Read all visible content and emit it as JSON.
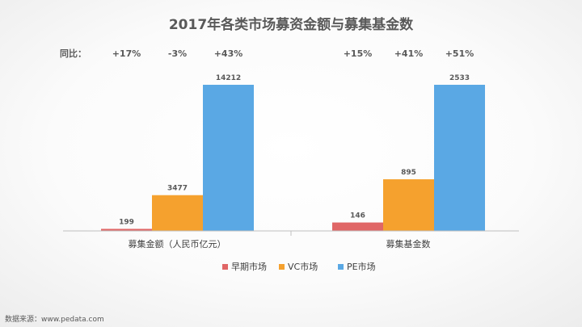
{
  "chart_data": {
    "type": "bar",
    "title": "2017年各类市场募资金额与募集基金数",
    "categories": [
      "募集金额（人民币亿元）",
      "募集基金数"
    ],
    "series": [
      {
        "name": "早期市场",
        "values": [
          199,
          146
        ],
        "color": "#e06666"
      },
      {
        "name": "VC市场",
        "values": [
          3477,
          895
        ],
        "color": "#f5a12e"
      },
      {
        "name": "PE市场",
        "values": [
          14212,
          2533
        ],
        "color": "#5aa8e4"
      }
    ],
    "data_labels": [
      [
        "199",
        "146"
      ],
      [
        "3477",
        "895"
      ],
      [
        "14212",
        "2533"
      ]
    ],
    "yoy_label": "同比：",
    "yoy": [
      [
        "+17%",
        "+15%"
      ],
      [
        "-3%",
        "+41%"
      ],
      [
        "+43%",
        "+51%"
      ]
    ],
    "legend_position": "bottom",
    "grid": false,
    "source": "数据来源：www.pedata.com"
  }
}
